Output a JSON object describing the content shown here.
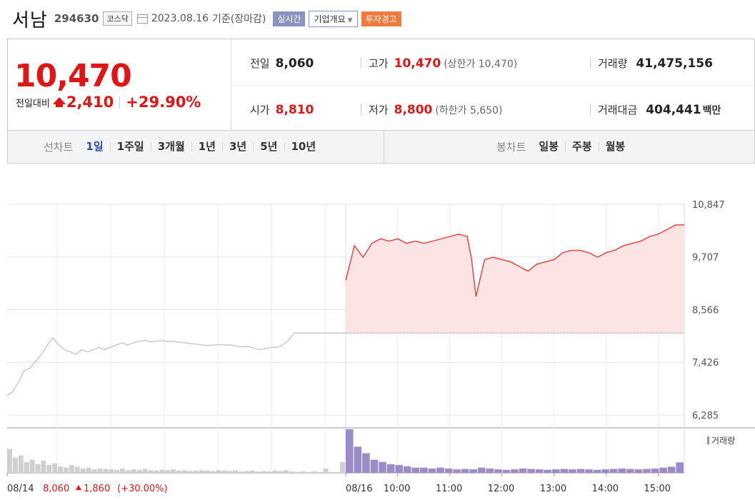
{
  "stock": {
    "name": "서남",
    "code": "294630",
    "market": "코스닥",
    "date": "2023.08.16",
    "basis": "기준(장마감)",
    "btn_realtime": "실시간",
    "btn_company": "기업개요",
    "btn_warning": "투자경고"
  },
  "quote": {
    "price": "10,470",
    "diff_label": "전일대비",
    "diff": "2,410",
    "pct": "+29.90%",
    "prev_label": "전일",
    "prev": "8,060",
    "open_label": "시가",
    "open": "8,810",
    "high_label": "고가",
    "high": "10,470",
    "upper_limit": "(상한가 10,470)",
    "low_label": "저가",
    "low": "8,800",
    "lower_limit": "(하한가 5,650)",
    "volume_label": "거래량",
    "volume": "41,475,156",
    "amount_label": "거래대금",
    "amount": "404,441",
    "amount_unit": "백만"
  },
  "tabs": {
    "line_label": "선차트",
    "line_items": [
      "1일",
      "1주일",
      "3개월",
      "1년",
      "3년",
      "5년",
      "10년"
    ],
    "selected": "1일",
    "candle_label": "봉차트",
    "candle_items": [
      "일봉",
      "주봉",
      "월봉"
    ]
  },
  "chart_data": {
    "type": "line",
    "ylim": [
      6285,
      10847
    ],
    "yticks": [
      "10,847",
      "9,707",
      "8,566",
      "7,426",
      "6,285"
    ],
    "prev_close": 8060,
    "xticks": [
      "08/16",
      "10:00",
      "11:00",
      "12:00",
      "13:00",
      "14:00",
      "15:00"
    ],
    "volume_legend": "거래량",
    "prev_day": {
      "date": "08/14",
      "summary_price": "8,060",
      "summary_change": "1,860",
      "summary_pct": "(+30.00%)",
      "values": [
        6700,
        6800,
        7000,
        7250,
        7300,
        7450,
        7600,
        7800,
        7950,
        7800,
        7700,
        7650,
        7600,
        7700,
        7650,
        7700,
        7750,
        7700,
        7750,
        7800,
        7850,
        7800,
        7850,
        7880,
        7900,
        7870,
        7880,
        7900,
        7870,
        7880,
        7860,
        7850,
        7830,
        7820,
        7800,
        7790,
        7800,
        7810,
        7800,
        7800,
        7780,
        7760,
        7770,
        7730,
        7700,
        7720,
        7750,
        7750,
        7800,
        7900,
        8060,
        8060,
        8060,
        8060,
        8060,
        8060,
        8060,
        8060,
        8060,
        8060
      ]
    },
    "today": {
      "times": [
        "09:00",
        "09:10",
        "09:20",
        "09:30",
        "09:40",
        "09:50",
        "10:00",
        "10:10",
        "10:20",
        "10:30",
        "10:40",
        "10:50",
        "11:00",
        "11:10",
        "11:20",
        "11:25",
        "11:30",
        "11:40",
        "11:50",
        "12:00",
        "12:10",
        "12:20",
        "12:30",
        "12:40",
        "12:50",
        "13:00",
        "13:10",
        "13:20",
        "13:30",
        "13:40",
        "13:50",
        "14:00",
        "14:10",
        "14:20",
        "14:30",
        "14:40",
        "14:50",
        "15:00",
        "15:10",
        "15:20",
        "15:30"
      ],
      "values": [
        9200,
        9950,
        9700,
        10000,
        10100,
        10050,
        10100,
        10000,
        10050,
        10000,
        10050,
        10100,
        10150,
        10200,
        10150,
        9650,
        8850,
        9650,
        9700,
        9650,
        9600,
        9500,
        9400,
        9550,
        9600,
        9650,
        9800,
        9850,
        9850,
        9800,
        9700,
        9800,
        9850,
        9950,
        10000,
        10050,
        10150,
        10200,
        10300,
        10400,
        10400
      ]
    },
    "volume_prev": [
      55,
      35,
      40,
      25,
      30,
      20,
      28,
      18,
      22,
      15,
      12,
      18,
      14,
      10,
      12,
      8,
      10,
      9,
      8,
      7,
      10,
      6,
      8,
      7,
      9,
      6,
      5,
      7,
      6,
      8,
      5,
      6,
      4,
      5,
      6,
      5,
      4,
      6,
      5,
      4,
      5,
      3,
      4,
      5,
      3,
      4,
      3,
      5,
      4,
      6,
      3,
      2,
      3,
      2,
      3,
      2,
      10,
      2,
      2,
      25
    ],
    "volume_today": [
      100,
      60,
      45,
      30,
      25,
      20,
      18,
      15,
      12,
      12,
      10,
      12,
      10,
      8,
      9,
      8,
      12,
      10,
      8,
      7,
      8,
      10,
      9,
      8,
      7,
      8,
      9,
      8,
      9,
      8,
      7,
      8,
      9,
      10,
      9,
      8,
      9,
      10,
      12,
      14,
      24
    ]
  }
}
